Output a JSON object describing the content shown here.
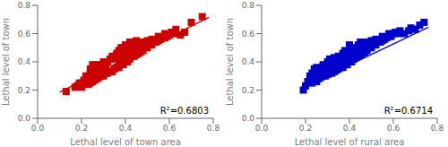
{
  "chart_data": [
    {
      "type": "scatter",
      "x_label": "Lethal level of town area",
      "y_label": "Lethal level of town",
      "annotation": "R²=0.6803",
      "xlim": [
        0.0,
        0.8
      ],
      "ylim": [
        0.0,
        0.8
      ],
      "xticks": [
        {
          "value": 0.0,
          "label": "0.0"
        },
        0.2,
        0.4,
        0.6,
        0.8
      ],
      "yticks": [
        {
          "value": 0.0,
          "label": "0.0"
        },
        0.2,
        0.4,
        0.6,
        0.8
      ],
      "series": [
        {
          "type": "scatter",
          "color": "#cc0000",
          "marker": "square",
          "x": [
            0.13,
            0.17,
            0.18,
            0.19,
            0.2,
            0.2,
            0.21,
            0.21,
            0.22,
            0.22,
            0.22,
            0.23,
            0.23,
            0.23,
            0.24,
            0.24,
            0.24,
            0.24,
            0.24,
            0.25,
            0.25,
            0.25,
            0.25,
            0.26,
            0.26,
            0.27,
            0.27,
            0.27,
            0.28,
            0.28,
            0.29,
            0.29,
            0.3,
            0.3,
            0.3,
            0.31,
            0.31,
            0.32,
            0.32,
            0.33,
            0.33,
            0.34,
            0.34,
            0.35,
            0.35,
            0.36,
            0.36,
            0.37,
            0.37,
            0.37,
            0.38,
            0.38,
            0.38,
            0.39,
            0.39,
            0.39,
            0.4,
            0.4,
            0.4,
            0.4,
            0.41,
            0.41,
            0.41,
            0.42,
            0.42,
            0.42,
            0.42,
            0.43,
            0.43,
            0.43,
            0.44,
            0.44,
            0.44,
            0.45,
            0.45,
            0.45,
            0.46,
            0.46,
            0.47,
            0.47,
            0.48,
            0.48,
            0.49,
            0.5,
            0.5,
            0.51,
            0.52,
            0.52,
            0.53,
            0.54,
            0.55,
            0.55,
            0.56,
            0.57,
            0.58,
            0.58,
            0.59,
            0.6,
            0.61,
            0.62,
            0.63,
            0.65,
            0.67,
            0.7,
            0.75
          ],
          "values": [
            0.19,
            0.22,
            0.23,
            0.25,
            0.22,
            0.25,
            0.24,
            0.27,
            0.25,
            0.26,
            0.3,
            0.24,
            0.27,
            0.3,
            0.25,
            0.28,
            0.3,
            0.32,
            0.35,
            0.26,
            0.29,
            0.32,
            0.38,
            0.27,
            0.35,
            0.28,
            0.32,
            0.38,
            0.29,
            0.35,
            0.3,
            0.36,
            0.3,
            0.33,
            0.4,
            0.32,
            0.38,
            0.32,
            0.4,
            0.33,
            0.42,
            0.33,
            0.44,
            0.35,
            0.42,
            0.36,
            0.46,
            0.36,
            0.4,
            0.48,
            0.38,
            0.42,
            0.5,
            0.38,
            0.44,
            0.5,
            0.4,
            0.42,
            0.46,
            0.52,
            0.4,
            0.46,
            0.52,
            0.42,
            0.46,
            0.5,
            0.54,
            0.44,
            0.48,
            0.52,
            0.44,
            0.48,
            0.54,
            0.45,
            0.5,
            0.55,
            0.46,
            0.52,
            0.47,
            0.53,
            0.48,
            0.54,
            0.5,
            0.5,
            0.55,
            0.52,
            0.52,
            0.56,
            0.54,
            0.54,
            0.55,
            0.58,
            0.56,
            0.57,
            0.57,
            0.6,
            0.58,
            0.59,
            0.61,
            0.6,
            0.63,
            0.59,
            0.61,
            0.68,
            0.72
          ]
        },
        {
          "type": "line",
          "color": "#cc0000",
          "line_style": "solid",
          "x": [
            0.1,
            0.78
          ],
          "values": [
            0.185,
            0.715
          ]
        }
      ]
    },
    {
      "type": "scatter",
      "x_label": "Lethal level of rural area",
      "y_label": "Lethal level of town",
      "annotation": "R²=0.6714",
      "xlim": [
        0.0,
        0.8
      ],
      "ylim": [
        0.0,
        0.8
      ],
      "xticks": [
        {
          "value": 0.0,
          "label": "0.0"
        },
        0.2,
        0.4,
        0.6,
        0.8
      ],
      "yticks": [
        {
          "value": 0.0,
          "label": "0.0"
        },
        0.2,
        0.4,
        0.6,
        0.8
      ],
      "series": [
        {
          "type": "scatter",
          "color": "#0000cc",
          "marker": "square",
          "x": [
            0.19,
            0.2,
            0.21,
            0.22,
            0.22,
            0.23,
            0.23,
            0.24,
            0.24,
            0.25,
            0.25,
            0.25,
            0.26,
            0.26,
            0.27,
            0.27,
            0.28,
            0.28,
            0.28,
            0.29,
            0.29,
            0.3,
            0.3,
            0.3,
            0.31,
            0.31,
            0.31,
            0.32,
            0.32,
            0.33,
            0.33,
            0.33,
            0.34,
            0.34,
            0.35,
            0.35,
            0.35,
            0.36,
            0.36,
            0.37,
            0.37,
            0.37,
            0.38,
            0.38,
            0.38,
            0.39,
            0.39,
            0.4,
            0.4,
            0.4,
            0.4,
            0.41,
            0.41,
            0.41,
            0.42,
            0.42,
            0.43,
            0.43,
            0.44,
            0.44,
            0.44,
            0.45,
            0.45,
            0.45,
            0.46,
            0.46,
            0.47,
            0.47,
            0.48,
            0.48,
            0.49,
            0.5,
            0.5,
            0.51,
            0.52,
            0.52,
            0.53,
            0.54,
            0.55,
            0.55,
            0.56,
            0.57,
            0.58,
            0.58,
            0.59,
            0.6,
            0.61,
            0.62,
            0.63,
            0.65,
            0.67,
            0.68,
            0.7,
            0.72,
            0.74
          ],
          "values": [
            0.2,
            0.23,
            0.26,
            0.27,
            0.3,
            0.25,
            0.32,
            0.28,
            0.35,
            0.26,
            0.3,
            0.36,
            0.28,
            0.32,
            0.29,
            0.36,
            0.3,
            0.34,
            0.38,
            0.3,
            0.37,
            0.31,
            0.35,
            0.4,
            0.32,
            0.36,
            0.42,
            0.32,
            0.38,
            0.33,
            0.38,
            0.43,
            0.34,
            0.4,
            0.35,
            0.4,
            0.44,
            0.36,
            0.42,
            0.36,
            0.42,
            0.46,
            0.38,
            0.43,
            0.48,
            0.38,
            0.45,
            0.4,
            0.44,
            0.48,
            0.52,
            0.4,
            0.45,
            0.5,
            0.42,
            0.47,
            0.43,
            0.5,
            0.44,
            0.48,
            0.52,
            0.45,
            0.5,
            0.54,
            0.46,
            0.52,
            0.47,
            0.53,
            0.48,
            0.54,
            0.5,
            0.5,
            0.55,
            0.52,
            0.52,
            0.56,
            0.54,
            0.54,
            0.55,
            0.58,
            0.56,
            0.57,
            0.58,
            0.6,
            0.58,
            0.6,
            0.61,
            0.6,
            0.62,
            0.6,
            0.62,
            0.64,
            0.63,
            0.66,
            0.68
          ]
        },
        {
          "type": "line",
          "color": "#0000cc",
          "line_style": "solid",
          "x": [
            0.18,
            0.76
          ],
          "values": [
            0.215,
            0.645
          ]
        }
      ]
    }
  ]
}
